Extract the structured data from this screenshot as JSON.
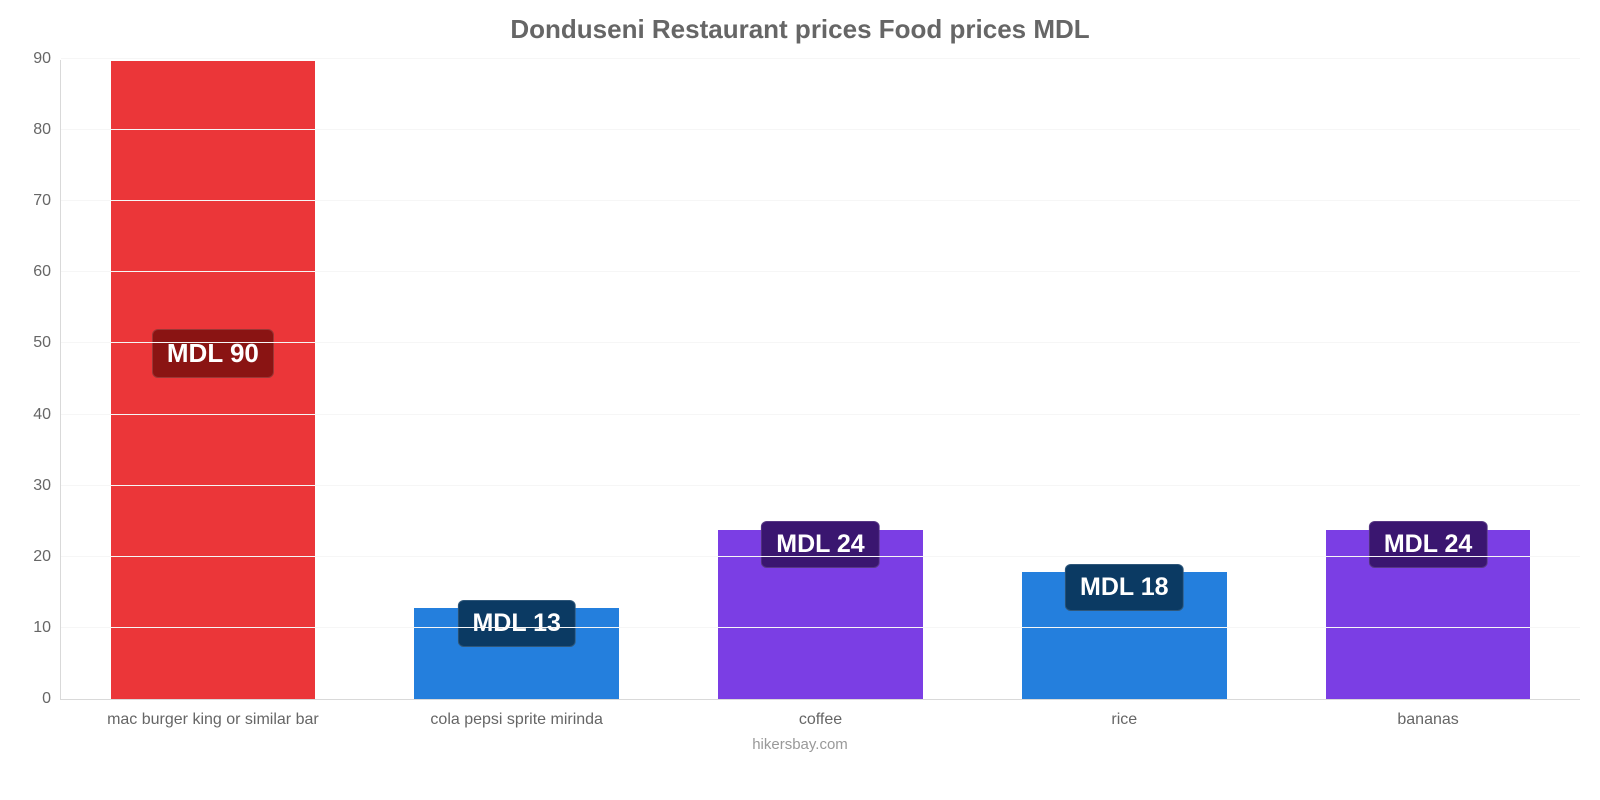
{
  "chart": {
    "type": "bar",
    "title": "Donduseni Restaurant prices Food prices MDL",
    "title_fontsize": 26,
    "title_color": "#666666",
    "credit": "hikersbay.com",
    "credit_color": "#999999",
    "background_color": "#ffffff",
    "plot_background_color": "#ffffff",
    "grid_color": "#f6f6f6",
    "axis_line_color": "#d9d9d9",
    "y": {
      "min": 0,
      "max": 90,
      "tick_step": 10,
      "tick_color": "#666666",
      "tick_fontsize": 16
    },
    "x": {
      "tick_color": "#666666",
      "tick_fontsize": 16
    },
    "bar_width_pct": 68,
    "bars": [
      {
        "category": "mac burger king or similar bar",
        "value": 90,
        "label": "MDL 90",
        "color": "#eb3639",
        "badge_bg": "#8a1413",
        "badge_text_color": "#ffffff",
        "badge_fontsize": 26
      },
      {
        "category": "cola pepsi sprite mirinda",
        "value": 13,
        "label": "MDL 13",
        "color": "#247fdd",
        "badge_bg": "#0b3a63",
        "badge_text_color": "#ffffff",
        "badge_fontsize": 25
      },
      {
        "category": "coffee",
        "value": 24,
        "label": "MDL 24",
        "color": "#7b3ee4",
        "badge_bg": "#3a1670",
        "badge_text_color": "#ffffff",
        "badge_fontsize": 25
      },
      {
        "category": "rice",
        "value": 18,
        "label": "MDL 18",
        "color": "#247fdd",
        "badge_bg": "#0b3a63",
        "badge_text_color": "#ffffff",
        "badge_fontsize": 25
      },
      {
        "category": "bananas",
        "value": 24,
        "label": "MDL 24",
        "color": "#7b3ee4",
        "badge_bg": "#3a1670",
        "badge_text_color": "#ffffff",
        "badge_fontsize": 25
      }
    ]
  }
}
